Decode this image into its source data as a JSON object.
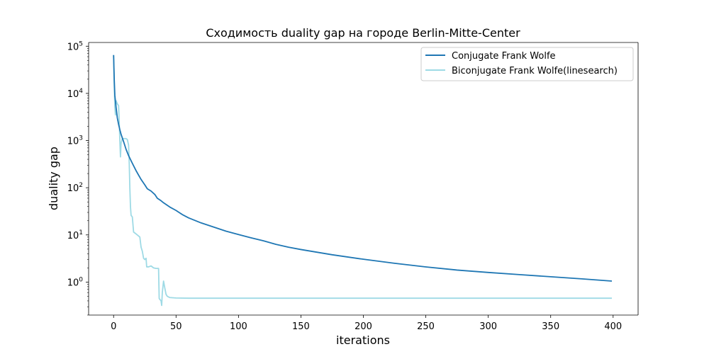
{
  "chart_data": {
    "type": "line",
    "title": "Сходимость duality gap на городе Berlin-Mitte-Center",
    "xlabel": "iterations",
    "ylabel": "duality gap",
    "xlim": [
      -20,
      420
    ],
    "ylim": [
      0.2,
      120000
    ],
    "yscale": "log",
    "grid": false,
    "legend_position": "top-right",
    "x_ticks": [
      0,
      50,
      100,
      150,
      200,
      250,
      300,
      350,
      400
    ],
    "x_tick_labels": [
      "0",
      "50",
      "100",
      "150",
      "200",
      "250",
      "300",
      "350",
      "400"
    ],
    "y_ticks": [
      1,
      10,
      100,
      1000,
      10000,
      100000
    ],
    "y_tick_labels": [
      {
        "base": "10",
        "exp": "0"
      },
      {
        "base": "10",
        "exp": "1"
      },
      {
        "base": "10",
        "exp": "2"
      },
      {
        "base": "10",
        "exp": "3"
      },
      {
        "base": "10",
        "exp": "4"
      },
      {
        "base": "10",
        "exp": "5"
      }
    ],
    "series": [
      {
        "name": "Conjugate Frank Wolfe",
        "color": "#1f77b4",
        "points": [
          [
            0,
            65000
          ],
          [
            0.5,
            20000
          ],
          [
            1,
            9000
          ],
          [
            2,
            5000
          ],
          [
            3,
            3000
          ],
          [
            4,
            2200
          ],
          [
            5,
            1700
          ],
          [
            6,
            1350
          ],
          [
            8,
            950
          ],
          [
            10,
            650
          ],
          [
            12,
            480
          ],
          [
            15,
            330
          ],
          [
            18,
            230
          ],
          [
            20,
            185
          ],
          [
            22,
            150
          ],
          [
            25,
            115
          ],
          [
            27,
            95
          ],
          [
            30,
            85
          ],
          [
            33,
            72
          ],
          [
            35,
            60
          ],
          [
            38,
            53
          ],
          [
            40,
            48
          ],
          [
            45,
            39
          ],
          [
            50,
            33
          ],
          [
            55,
            27
          ],
          [
            60,
            23
          ],
          [
            70,
            18
          ],
          [
            80,
            14.7
          ],
          [
            90,
            12
          ],
          [
            100,
            10.2
          ],
          [
            110,
            8.7
          ],
          [
            120,
            7.5
          ],
          [
            130,
            6.3
          ],
          [
            140,
            5.5
          ],
          [
            150,
            4.9
          ],
          [
            175,
            3.8
          ],
          [
            200,
            3.05
          ],
          [
            225,
            2.5
          ],
          [
            250,
            2.1
          ],
          [
            275,
            1.8
          ],
          [
            300,
            1.6
          ],
          [
            325,
            1.44
          ],
          [
            350,
            1.3
          ],
          [
            375,
            1.17
          ],
          [
            399,
            1.05
          ]
        ]
      },
      {
        "name": "Biconjugate Frank Wolfe(linesearch)",
        "color": "#9edae5",
        "points": [
          [
            0,
            65000
          ],
          [
            0.5,
            15000
          ],
          [
            1,
            5000
          ],
          [
            1.5,
            3500
          ],
          [
            2,
            7000
          ],
          [
            3,
            6000
          ],
          [
            4,
            5500
          ],
          [
            4.5,
            2500
          ],
          [
            5,
            1000
          ],
          [
            5.5,
            450
          ],
          [
            6,
            900
          ],
          [
            7,
            1100
          ],
          [
            8,
            1100
          ],
          [
            10,
            1100
          ],
          [
            11,
            1050
          ],
          [
            12,
            800
          ],
          [
            12.5,
            350
          ],
          [
            13,
            100
          ],
          [
            13.5,
            40
          ],
          [
            14,
            26
          ],
          [
            15,
            24
          ],
          [
            16,
            11.5
          ],
          [
            18,
            10.5
          ],
          [
            20,
            9.5
          ],
          [
            21,
            9
          ],
          [
            22,
            5.5
          ],
          [
            23,
            4.5
          ],
          [
            24,
            3.2
          ],
          [
            25,
            3.0
          ],
          [
            26,
            3.2
          ],
          [
            26.5,
            2.1
          ],
          [
            28,
            2.1
          ],
          [
            30,
            2.2
          ],
          [
            32,
            2.0
          ],
          [
            34,
            1.95
          ],
          [
            36,
            1.95
          ],
          [
            36.5,
            0.45
          ],
          [
            37,
            0.43
          ],
          [
            38,
            0.4
          ],
          [
            38.5,
            0.32
          ],
          [
            39,
            0.6
          ],
          [
            40,
            1.05
          ],
          [
            41,
            0.75
          ],
          [
            42,
            0.55
          ],
          [
            43,
            0.5
          ],
          [
            45,
            0.47
          ],
          [
            50,
            0.46
          ],
          [
            60,
            0.455
          ],
          [
            100,
            0.455
          ],
          [
            200,
            0.455
          ],
          [
            300,
            0.455
          ],
          [
            399,
            0.455
          ]
        ]
      }
    ]
  }
}
